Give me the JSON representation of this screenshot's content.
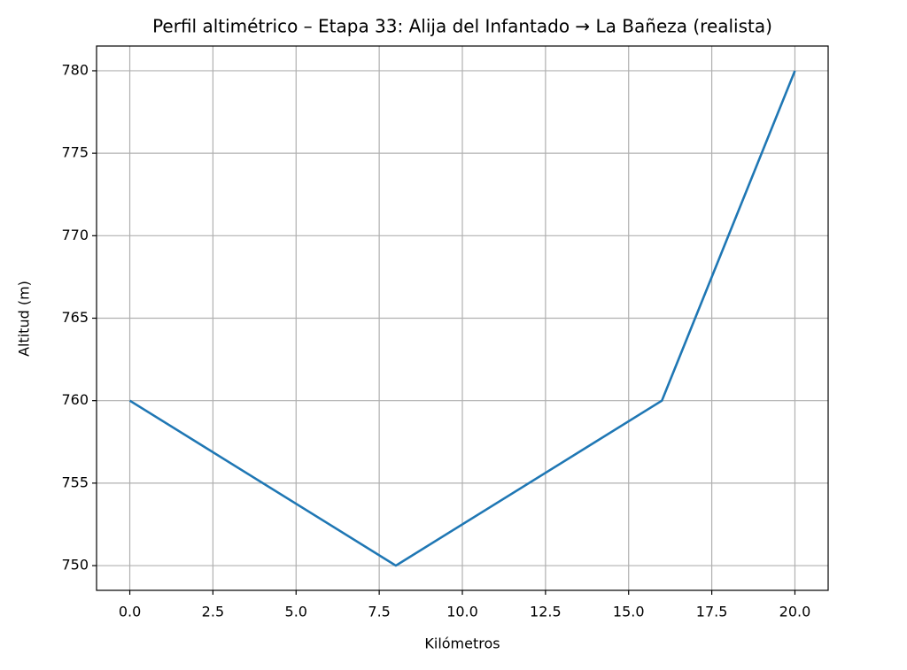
{
  "chart_data": {
    "type": "line",
    "title": "Perfil altimétrico – Etapa 33: Alija del Infantado → La Bañeza (realista)",
    "x_label": "Kilómetros",
    "y_label": "Altitud (m)",
    "x": [
      0,
      8,
      16,
      20
    ],
    "values": [
      760,
      750,
      760,
      780
    ],
    "color": "#1f77b4",
    "xlim": [
      -1,
      21
    ],
    "ylim": [
      748.5,
      781.5
    ],
    "xticks": [
      {
        "value": 0,
        "label": "0.0"
      },
      2.5,
      {
        "value": 5,
        "label": "5.0"
      },
      7.5,
      {
        "value": 10,
        "label": "10.0"
      },
      12.5,
      {
        "value": 15,
        "label": "15.0"
      },
      17.5,
      {
        "value": 20,
        "label": "20.0"
      }
    ],
    "yticks": [
      750,
      755,
      760,
      765,
      770,
      775,
      780
    ],
    "grid": true
  }
}
